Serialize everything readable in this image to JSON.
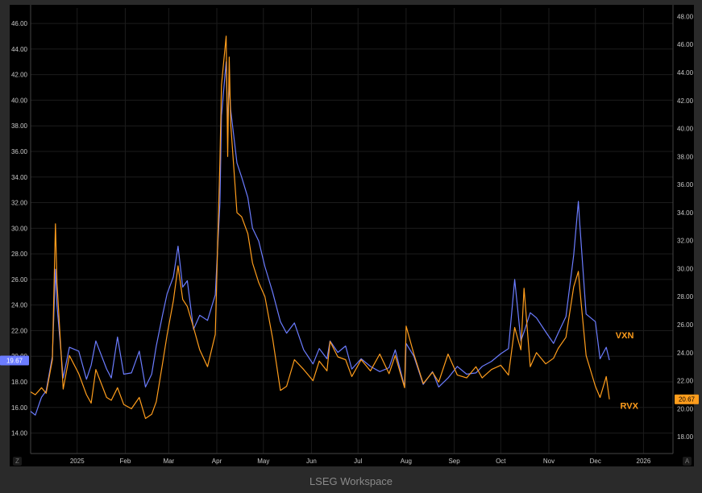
{
  "app": {
    "footer": "LSEG Workspace",
    "corner_left": "Z",
    "corner_right": "A"
  },
  "colors": {
    "vxn": "#6b7cff",
    "rvx": "#ff9d1c",
    "background": "#000000",
    "grid": "#1c1c1c"
  },
  "chart_data": {
    "type": "line",
    "x_tick_labels": [
      "2025",
      "Feb",
      "Mar",
      "Apr",
      "May",
      "Jun",
      "Jul",
      "Aug",
      "Sep",
      "Oct",
      "Nov",
      "Dec",
      "2026"
    ],
    "x_range": [
      "2024-12-02",
      "2026-01-20"
    ],
    "left_axis": {
      "ticks": [
        "14.00",
        "16.00",
        "18.00",
        "20.00",
        "22.00",
        "24.00",
        "26.00",
        "28.00",
        "30.00",
        "32.00",
        "34.00",
        "36.00",
        "38.00",
        "40.00",
        "42.00",
        "44.00",
        "46.00"
      ],
      "ylim": [
        12.4,
        47.2
      ]
    },
    "right_axis": {
      "ticks": [
        "18.00",
        "20.00",
        "22.00",
        "24.00",
        "26.00",
        "28.00",
        "30.00",
        "32.00",
        "34.00",
        "36.00",
        "38.00",
        "40.00",
        "42.00",
        "44.00",
        "46.00",
        "48.00"
      ],
      "ylim": [
        16.8,
        48.6
      ]
    },
    "series": [
      {
        "name": "VXN",
        "axis": "left",
        "last_value_label": "19.67",
        "x": [
          "2024-12-02",
          "2024-12-05",
          "2024-12-09",
          "2024-12-12",
          "2024-12-16",
          "2024-12-18",
          "2024-12-19",
          "2024-12-23",
          "2024-12-27",
          "2025-01-02",
          "2025-01-07",
          "2025-01-10",
          "2025-01-13",
          "2025-01-20",
          "2025-01-23",
          "2025-01-27",
          "2025-01-31",
          "2025-02-05",
          "2025-02-10",
          "2025-02-14",
          "2025-02-18",
          "2025-02-21",
          "2025-02-25",
          "2025-02-28",
          "2025-03-04",
          "2025-03-07",
          "2025-03-10",
          "2025-03-13",
          "2025-03-17",
          "2025-03-21",
          "2025-03-26",
          "2025-03-31",
          "2025-04-03",
          "2025-04-04",
          "2025-04-07",
          "2025-04-08",
          "2025-04-09",
          "2025-04-10",
          "2025-04-14",
          "2025-04-17",
          "2025-04-21",
          "2025-04-24",
          "2025-04-28",
          "2025-05-02",
          "2025-05-07",
          "2025-05-12",
          "2025-05-16",
          "2025-05-21",
          "2025-05-27",
          "2025-06-02",
          "2025-06-06",
          "2025-06-11",
          "2025-06-13",
          "2025-06-18",
          "2025-06-23",
          "2025-06-27",
          "2025-07-03",
          "2025-07-09",
          "2025-07-15",
          "2025-07-21",
          "2025-07-25",
          "2025-07-31",
          "2025-08-01",
          "2025-08-06",
          "2025-08-12",
          "2025-08-18",
          "2025-08-22",
          "2025-08-28",
          "2025-09-03",
          "2025-09-09",
          "2025-09-15",
          "2025-09-19",
          "2025-09-25",
          "2025-10-01",
          "2025-10-06",
          "2025-10-10",
          "2025-10-14",
          "2025-10-16",
          "2025-10-20",
          "2025-10-24",
          "2025-10-30",
          "2025-11-04",
          "2025-11-07",
          "2025-11-12",
          "2025-11-17",
          "2025-11-20",
          "2025-11-21",
          "2025-11-25",
          "2025-12-01",
          "2025-12-04",
          "2025-12-08",
          "2025-12-10"
        ],
        "y": [
          15.7,
          15.4,
          16.8,
          17.3,
          20.0,
          26.8,
          24.0,
          18.3,
          20.7,
          20.4,
          18.2,
          19.3,
          21.2,
          19.0,
          18.3,
          21.5,
          18.6,
          18.7,
          20.4,
          17.6,
          18.6,
          20.8,
          23.2,
          24.9,
          26.2,
          28.6,
          25.4,
          25.9,
          22.1,
          23.2,
          22.8,
          24.8,
          32.0,
          38.8,
          43.0,
          38.0,
          41.3,
          39.2,
          35.1,
          34.0,
          32.4,
          30.0,
          29.0,
          27.0,
          25.0,
          22.7,
          21.8,
          22.6,
          20.5,
          19.4,
          20.6,
          19.8,
          21.2,
          20.3,
          20.8,
          19.0,
          19.8,
          19.2,
          18.8,
          19.1,
          20.5,
          17.6,
          21.0,
          20.0,
          17.8,
          18.8,
          17.6,
          18.3,
          19.2,
          18.6,
          18.7,
          19.2,
          19.6,
          20.2,
          20.6,
          26.0,
          21.2,
          21.9,
          23.4,
          23.0,
          21.9,
          21.0,
          21.8,
          23.1,
          27.9,
          32.1,
          30.2,
          23.3,
          22.7,
          19.8,
          20.7,
          19.7
        ]
      },
      {
        "name": "RVX",
        "axis": "right",
        "last_value_label": "20.67",
        "x": [
          "2024-12-02",
          "2024-12-05",
          "2024-12-09",
          "2024-12-12",
          "2024-12-16",
          "2024-12-18",
          "2024-12-19",
          "2024-12-23",
          "2024-12-27",
          "2025-01-02",
          "2025-01-07",
          "2025-01-10",
          "2025-01-13",
          "2025-01-20",
          "2025-01-23",
          "2025-01-27",
          "2025-01-31",
          "2025-02-05",
          "2025-02-10",
          "2025-02-14",
          "2025-02-18",
          "2025-02-21",
          "2025-02-25",
          "2025-02-28",
          "2025-03-04",
          "2025-03-07",
          "2025-03-10",
          "2025-03-13",
          "2025-03-17",
          "2025-03-21",
          "2025-03-26",
          "2025-03-31",
          "2025-04-03",
          "2025-04-04",
          "2025-04-07",
          "2025-04-08",
          "2025-04-09",
          "2025-04-10",
          "2025-04-14",
          "2025-04-17",
          "2025-04-21",
          "2025-04-24",
          "2025-04-28",
          "2025-05-02",
          "2025-05-07",
          "2025-05-12",
          "2025-05-16",
          "2025-05-21",
          "2025-05-27",
          "2025-06-02",
          "2025-06-06",
          "2025-06-11",
          "2025-06-13",
          "2025-06-18",
          "2025-06-23",
          "2025-06-27",
          "2025-07-03",
          "2025-07-09",
          "2025-07-15",
          "2025-07-21",
          "2025-07-25",
          "2025-07-31",
          "2025-08-01",
          "2025-08-06",
          "2025-08-12",
          "2025-08-18",
          "2025-08-22",
          "2025-08-28",
          "2025-09-03",
          "2025-09-09",
          "2025-09-15",
          "2025-09-19",
          "2025-09-25",
          "2025-10-01",
          "2025-10-06",
          "2025-10-10",
          "2025-10-14",
          "2025-10-16",
          "2025-10-20",
          "2025-10-24",
          "2025-10-30",
          "2025-11-04",
          "2025-11-07",
          "2025-11-12",
          "2025-11-17",
          "2025-11-20",
          "2025-11-21",
          "2025-11-25",
          "2025-12-01",
          "2025-12-04",
          "2025-12-08",
          "2025-12-10"
        ],
        "y": [
          21.2,
          21.0,
          21.5,
          21.1,
          23.5,
          33.2,
          29.0,
          21.4,
          23.8,
          22.5,
          21.0,
          20.4,
          22.8,
          20.8,
          20.6,
          21.5,
          20.3,
          20.0,
          20.8,
          19.3,
          19.6,
          20.5,
          23.2,
          25.3,
          27.7,
          30.2,
          27.8,
          27.3,
          25.8,
          24.2,
          23.0,
          25.3,
          37.8,
          43.1,
          46.6,
          38.0,
          45.1,
          40.3,
          34.0,
          33.7,
          32.5,
          30.4,
          29.0,
          28.0,
          25.0,
          21.3,
          21.6,
          23.5,
          22.8,
          22.0,
          23.4,
          22.7,
          24.8,
          23.7,
          23.5,
          22.3,
          23.5,
          22.7,
          23.9,
          22.5,
          23.8,
          21.5,
          25.9,
          23.9,
          21.8,
          22.6,
          21.9,
          23.9,
          22.4,
          22.2,
          23.0,
          22.2,
          22.8,
          23.1,
          22.4,
          25.8,
          24.2,
          28.6,
          23.0,
          24.0,
          23.2,
          23.6,
          24.3,
          25.1,
          28.7,
          29.8,
          28.5,
          23.8,
          21.6,
          20.8,
          22.3,
          20.67
        ]
      }
    ],
    "labels": {
      "vxn": "VXN",
      "rvx": "RVX"
    },
    "grid": true
  }
}
